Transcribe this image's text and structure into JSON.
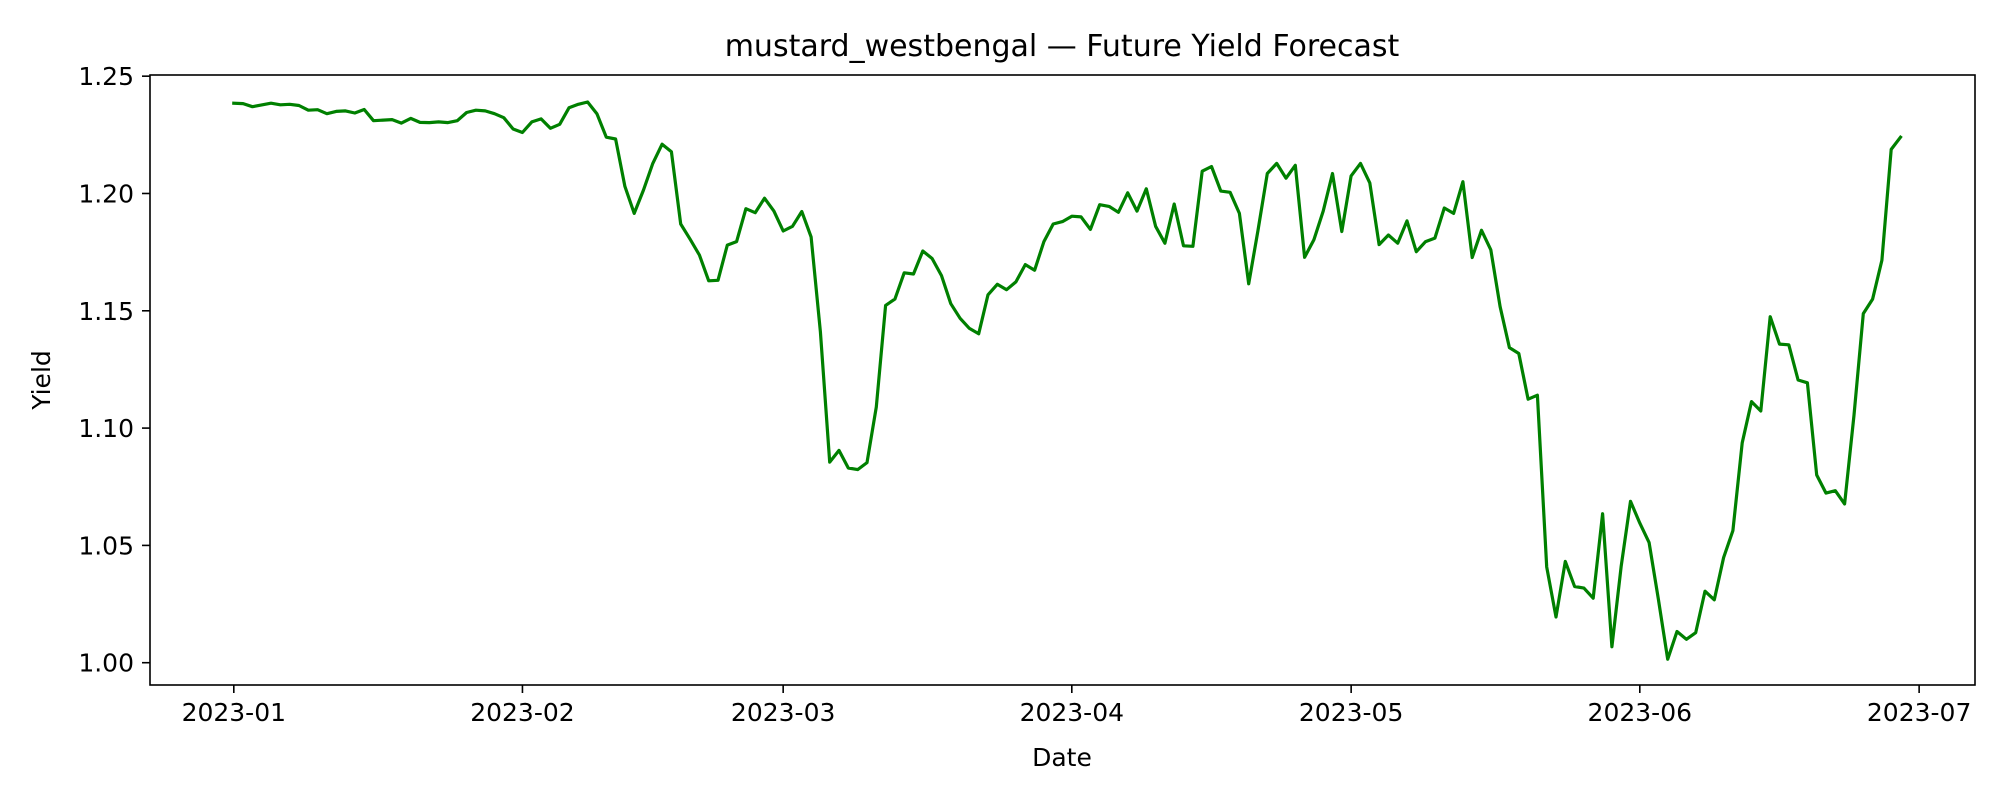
{
  "chart_data": {
    "type": "line",
    "title": "mustard_westbengal — Future Yield Forecast",
    "xlabel": "Date",
    "ylabel": "Yield",
    "xlim": [
      "2022-12-23",
      "2023-07-07"
    ],
    "ylim": [
      0.9905,
      1.2505
    ],
    "x_ticks": [
      "2023-01",
      "2023-02",
      "2023-03",
      "2023-04",
      "2023-05",
      "2023-06",
      "2023-07"
    ],
    "y_ticks": [
      "1.00",
      "1.05",
      "1.10",
      "1.15",
      "1.20",
      "1.25"
    ],
    "grid": false,
    "legend": "none",
    "series": [
      {
        "color": "#008000",
        "points": [
          [
            "2023-01-01",
            1.2385
          ],
          [
            "2023-01-02",
            1.2383
          ],
          [
            "2023-01-03",
            1.237
          ],
          [
            "2023-01-05",
            1.2385
          ],
          [
            "2023-01-06",
            1.2378
          ],
          [
            "2023-01-07",
            1.238
          ],
          [
            "2023-01-08",
            1.2375
          ],
          [
            "2023-01-09",
            1.2355
          ],
          [
            "2023-01-10",
            1.2357
          ],
          [
            "2023-01-11",
            1.234
          ],
          [
            "2023-01-12",
            1.235
          ],
          [
            "2023-01-13",
            1.2352
          ],
          [
            "2023-01-14",
            1.2343
          ],
          [
            "2023-01-15",
            1.2358
          ],
          [
            "2023-01-16",
            1.231
          ],
          [
            "2023-01-18",
            1.2315
          ],
          [
            "2023-01-19",
            1.23
          ],
          [
            "2023-01-20",
            1.232
          ],
          [
            "2023-01-21",
            1.2303
          ],
          [
            "2023-01-22",
            1.2302
          ],
          [
            "2023-01-23",
            1.2305
          ],
          [
            "2023-01-24",
            1.2302
          ],
          [
            "2023-01-25",
            1.231
          ],
          [
            "2023-01-26",
            1.2345
          ],
          [
            "2023-01-27",
            1.2355
          ],
          [
            "2023-01-28",
            1.2352
          ],
          [
            "2023-01-29",
            1.234
          ],
          [
            "2023-01-30",
            1.2323
          ],
          [
            "2023-01-31",
            1.2275
          ],
          [
            "2023-02-01",
            1.226
          ],
          [
            "2023-02-02",
            1.2305
          ],
          [
            "2023-02-03",
            1.2318
          ],
          [
            "2023-02-04",
            1.2278
          ],
          [
            "2023-02-05",
            1.2295
          ],
          [
            "2023-02-06",
            1.2365
          ],
          [
            "2023-02-07",
            1.238
          ],
          [
            "2023-02-08",
            1.239
          ],
          [
            "2023-02-09",
            1.234
          ],
          [
            "2023-02-10",
            1.224
          ],
          [
            "2023-02-11",
            1.2232
          ],
          [
            "2023-02-12",
            1.203
          ],
          [
            "2023-02-13",
            1.1915
          ],
          [
            "2023-02-14",
            1.2015
          ],
          [
            "2023-02-15",
            1.2128
          ],
          [
            "2023-02-16",
            1.221
          ],
          [
            "2023-02-17",
            1.2178
          ],
          [
            "2023-02-18",
            1.187
          ],
          [
            "2023-02-19",
            1.1805
          ],
          [
            "2023-02-20",
            1.1738
          ],
          [
            "2023-02-21",
            1.1628
          ],
          [
            "2023-02-22",
            1.163
          ],
          [
            "2023-02-23",
            1.178
          ],
          [
            "2023-02-24",
            1.1795
          ],
          [
            "2023-02-25",
            1.1935
          ],
          [
            "2023-02-26",
            1.1918
          ],
          [
            "2023-02-27",
            1.198
          ],
          [
            "2023-02-28",
            1.1925
          ],
          [
            "2023-03-01",
            1.184
          ],
          [
            "2023-03-02",
            1.186
          ],
          [
            "2023-03-03",
            1.1923
          ],
          [
            "2023-03-04",
            1.1815
          ],
          [
            "2023-03-05",
            1.141
          ],
          [
            "2023-03-06",
            1.0855
          ],
          [
            "2023-03-07",
            1.0905
          ],
          [
            "2023-03-08",
            1.083
          ],
          [
            "2023-03-09",
            1.0823
          ],
          [
            "2023-03-10",
            1.0853
          ],
          [
            "2023-03-11",
            1.109
          ],
          [
            "2023-03-12",
            1.1523
          ],
          [
            "2023-03-13",
            1.155
          ],
          [
            "2023-03-14",
            1.1662
          ],
          [
            "2023-03-15",
            1.1657
          ],
          [
            "2023-03-16",
            1.1755
          ],
          [
            "2023-03-17",
            1.1723
          ],
          [
            "2023-03-18",
            1.165
          ],
          [
            "2023-03-19",
            1.153
          ],
          [
            "2023-03-20",
            1.1468
          ],
          [
            "2023-03-21",
            1.1425
          ],
          [
            "2023-03-22",
            1.1402
          ],
          [
            "2023-03-23",
            1.1568
          ],
          [
            "2023-03-24",
            1.1613
          ],
          [
            "2023-03-25",
            1.159
          ],
          [
            "2023-03-26",
            1.1623
          ],
          [
            "2023-03-27",
            1.1697
          ],
          [
            "2023-03-28",
            1.1673
          ],
          [
            "2023-03-29",
            1.1795
          ],
          [
            "2023-03-30",
            1.187
          ],
          [
            "2023-03-31",
            1.188
          ],
          [
            "2023-04-01",
            1.1903
          ],
          [
            "2023-04-02",
            1.19
          ],
          [
            "2023-04-03",
            1.1847
          ],
          [
            "2023-04-04",
            1.1952
          ],
          [
            "2023-04-05",
            1.1945
          ],
          [
            "2023-04-06",
            1.192
          ],
          [
            "2023-04-07",
            1.2003
          ],
          [
            "2023-04-08",
            1.1925
          ],
          [
            "2023-04-09",
            1.202
          ],
          [
            "2023-04-10",
            1.186
          ],
          [
            "2023-04-11",
            1.1788
          ],
          [
            "2023-04-12",
            1.1955
          ],
          [
            "2023-04-13",
            1.1777
          ],
          [
            "2023-04-14",
            1.1775
          ],
          [
            "2023-04-15",
            1.2095
          ],
          [
            "2023-04-16",
            1.2115
          ],
          [
            "2023-04-17",
            1.201
          ],
          [
            "2023-04-18",
            1.2005
          ],
          [
            "2023-04-19",
            1.1915
          ],
          [
            "2023-04-20",
            1.1615
          ],
          [
            "2023-04-21",
            1.1843
          ],
          [
            "2023-04-22",
            1.2085
          ],
          [
            "2023-04-23",
            1.2128
          ],
          [
            "2023-04-24",
            1.2065
          ],
          [
            "2023-04-25",
            1.212
          ],
          [
            "2023-04-26",
            1.1728
          ],
          [
            "2023-04-27",
            1.1803
          ],
          [
            "2023-04-28",
            1.1925
          ],
          [
            "2023-04-29",
            1.2085
          ],
          [
            "2023-04-30",
            1.1838
          ],
          [
            "2023-05-01",
            1.2075
          ],
          [
            "2023-05-02",
            1.2128
          ],
          [
            "2023-05-03",
            1.2045
          ],
          [
            "2023-05-04",
            1.1782
          ],
          [
            "2023-05-05",
            1.1823
          ],
          [
            "2023-05-06",
            1.1788
          ],
          [
            "2023-05-07",
            1.1883
          ],
          [
            "2023-05-08",
            1.1752
          ],
          [
            "2023-05-09",
            1.1795
          ],
          [
            "2023-05-10",
            1.181
          ],
          [
            "2023-05-11",
            1.1938
          ],
          [
            "2023-05-12",
            1.1915
          ],
          [
            "2023-05-13",
            1.205
          ],
          [
            "2023-05-14",
            1.1727
          ],
          [
            "2023-05-15",
            1.1843
          ],
          [
            "2023-05-16",
            1.176
          ],
          [
            "2023-05-17",
            1.1518
          ],
          [
            "2023-05-18",
            1.1343
          ],
          [
            "2023-05-19",
            1.1318
          ],
          [
            "2023-05-20",
            1.1123
          ],
          [
            "2023-05-21",
            1.114
          ],
          [
            "2023-05-22",
            1.0408
          ],
          [
            "2023-05-23",
            1.0195
          ],
          [
            "2023-05-24",
            1.0432
          ],
          [
            "2023-05-25",
            1.0325
          ],
          [
            "2023-05-26",
            1.0318
          ],
          [
            "2023-05-27",
            1.0275
          ],
          [
            "2023-05-28",
            1.0635
          ],
          [
            "2023-05-29",
            1.0068
          ],
          [
            "2023-05-30",
            1.0412
          ],
          [
            "2023-05-31",
            1.0688
          ],
          [
            "2023-06-01",
            1.0595
          ],
          [
            "2023-06-02",
            1.0512
          ],
          [
            "2023-06-03",
            1.027
          ],
          [
            "2023-06-04",
            1.0015
          ],
          [
            "2023-06-05",
            1.0133
          ],
          [
            "2023-06-06",
            1.01
          ],
          [
            "2023-06-07",
            1.0128
          ],
          [
            "2023-06-08",
            1.0305
          ],
          [
            "2023-06-09",
            1.0268
          ],
          [
            "2023-06-10",
            1.0448
          ],
          [
            "2023-06-11",
            1.0563
          ],
          [
            "2023-06-12",
            1.0937
          ],
          [
            "2023-06-13",
            1.1113
          ],
          [
            "2023-06-14",
            1.1073
          ],
          [
            "2023-06-15",
            1.1475
          ],
          [
            "2023-06-16",
            1.1358
          ],
          [
            "2023-06-17",
            1.1355
          ],
          [
            "2023-06-18",
            1.1205
          ],
          [
            "2023-06-19",
            1.1193
          ],
          [
            "2023-06-20",
            1.08
          ],
          [
            "2023-06-21",
            1.0723
          ],
          [
            "2023-06-22",
            1.0733
          ],
          [
            "2023-06-23",
            1.0677
          ],
          [
            "2023-06-24",
            1.1055
          ],
          [
            "2023-06-25",
            1.1488
          ],
          [
            "2023-06-26",
            1.155
          ],
          [
            "2023-06-27",
            1.1715
          ],
          [
            "2023-06-28",
            1.2188
          ],
          [
            "2023-06-29",
            1.224
          ]
        ]
      }
    ]
  }
}
